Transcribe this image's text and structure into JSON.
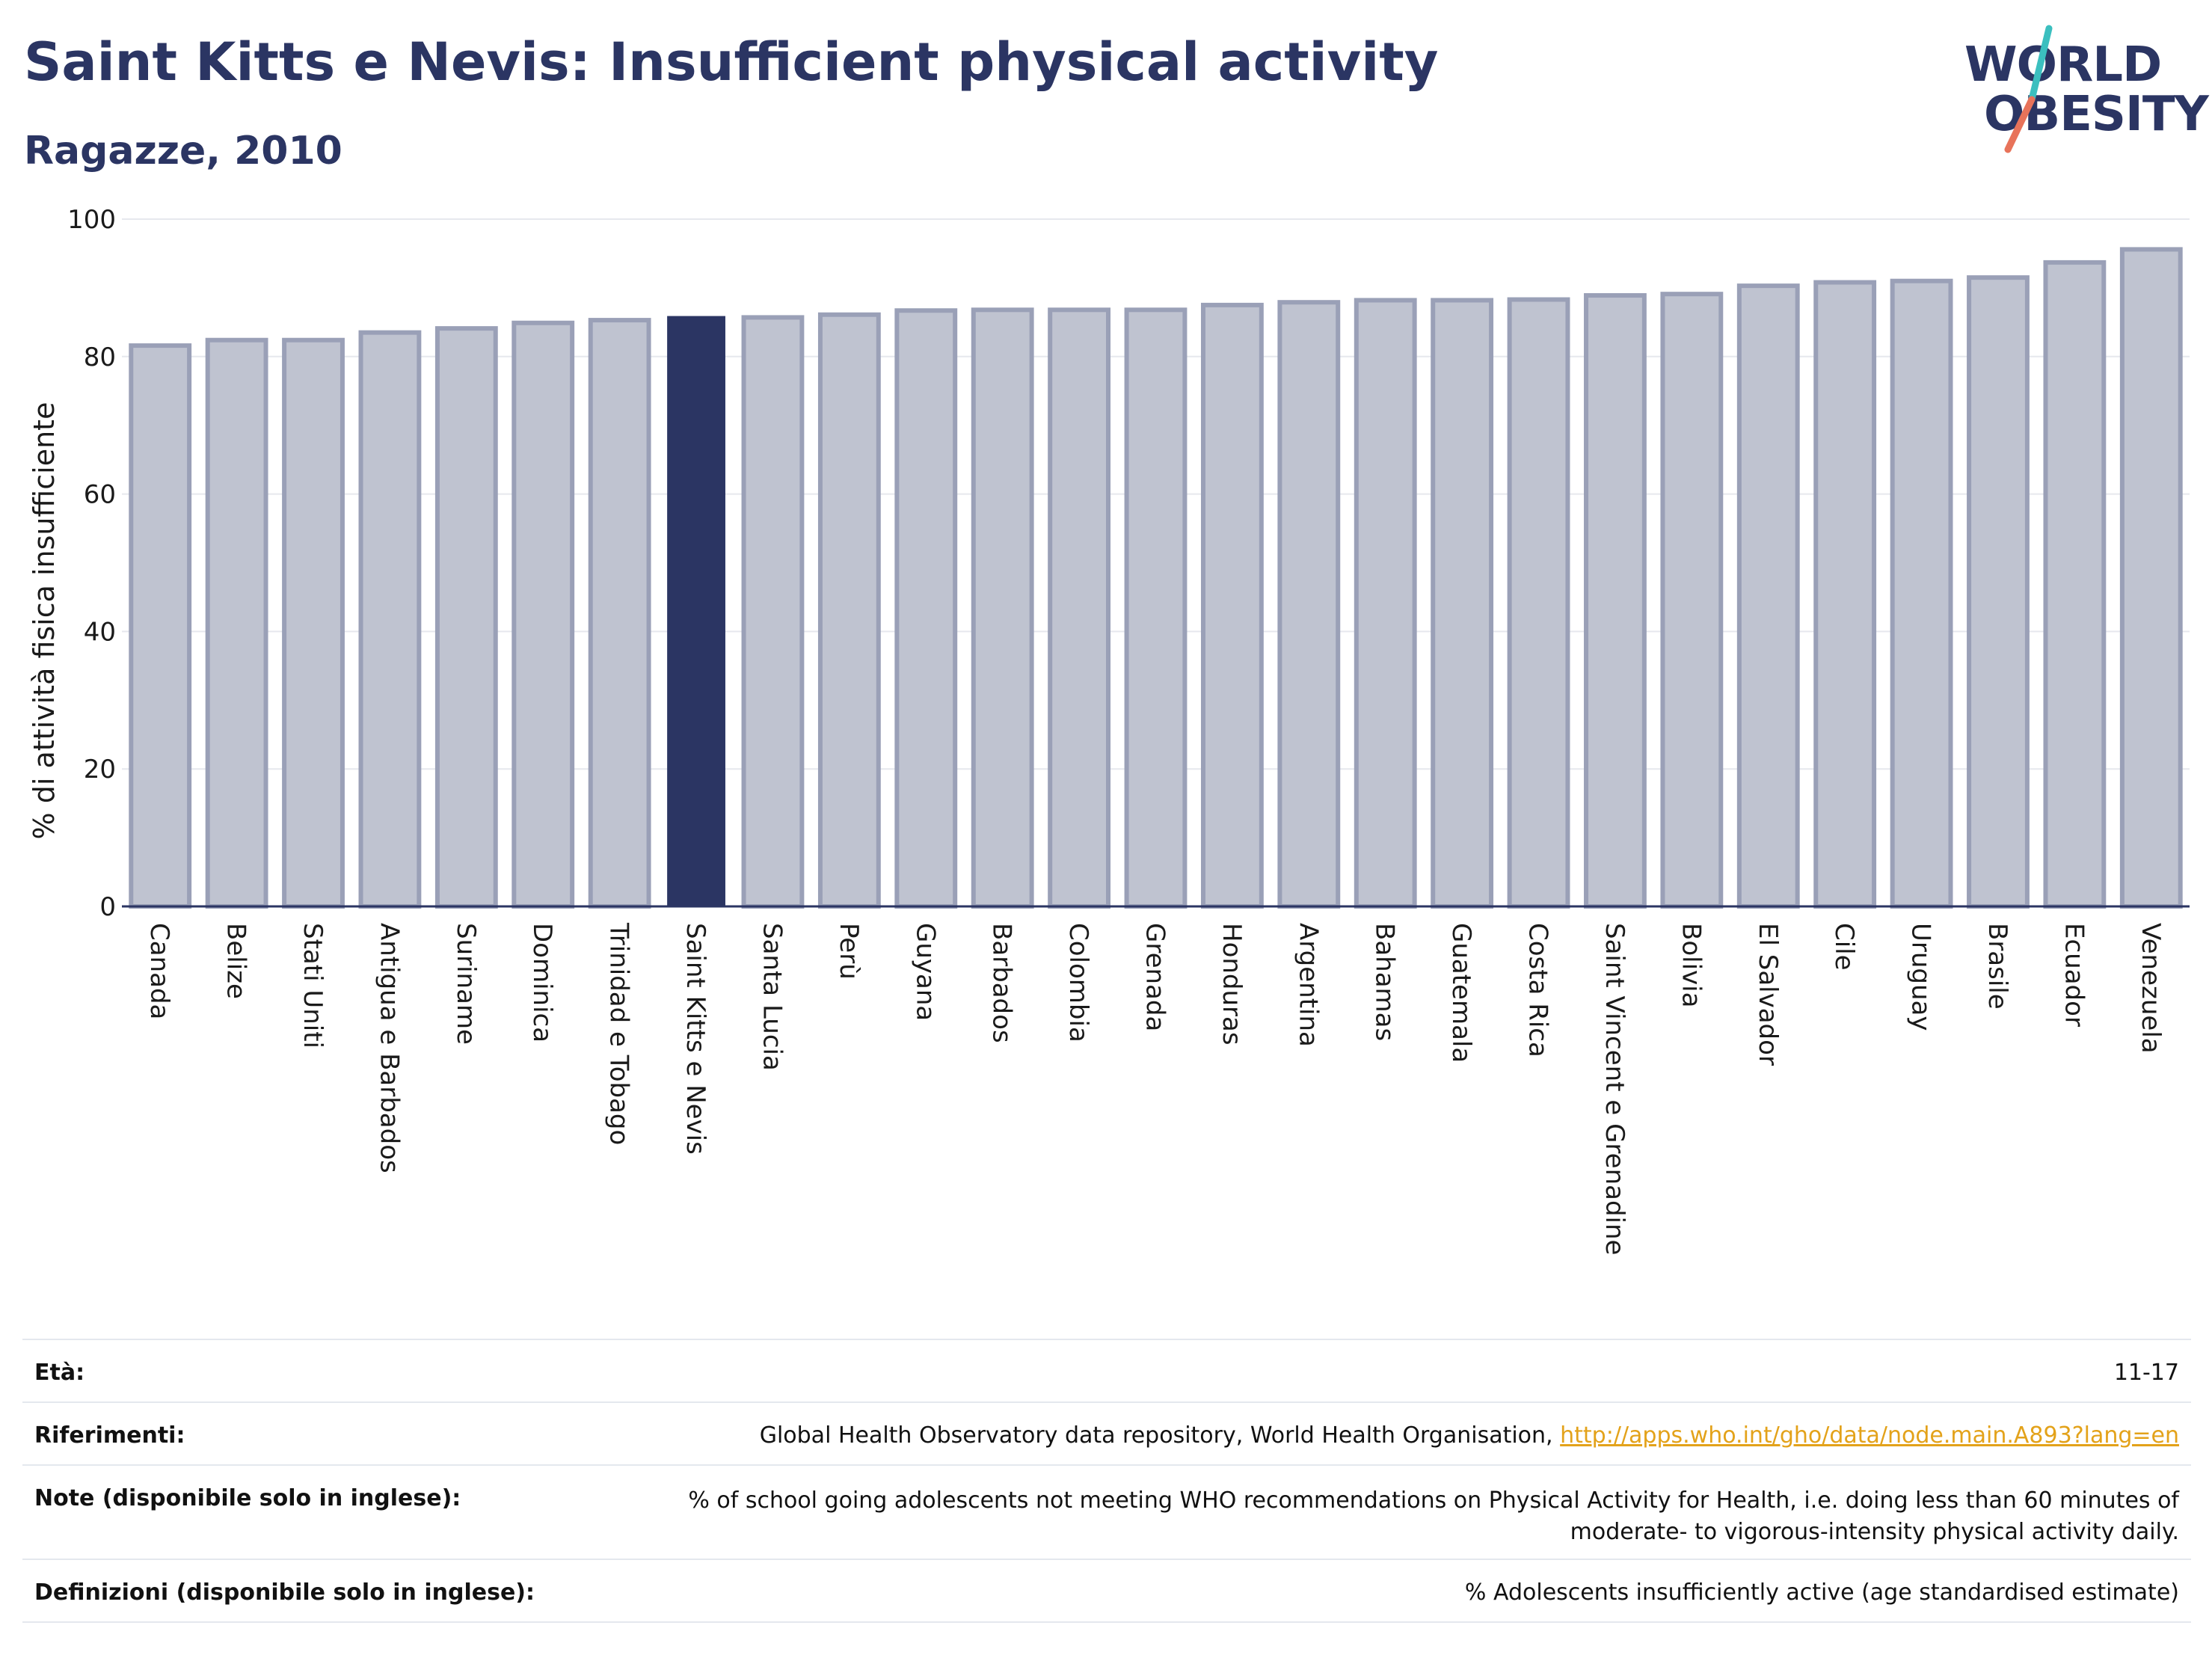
{
  "header": {
    "title": "Saint Kitts e Nevis: Insufficient physical activity",
    "subtitle": "Ragazze, 2010"
  },
  "logo": {
    "line1": "WORLD",
    "line2": "OBESITY",
    "colors": {
      "teal": "#3bbfbf",
      "coral": "#e8735a",
      "navy": "#2b3563"
    }
  },
  "chart_data": {
    "type": "bar",
    "ylabel": "% di attività fisica insufficiente",
    "ylim": [
      0,
      100
    ],
    "yticks": [
      0,
      20,
      40,
      60,
      80,
      100
    ],
    "grid": true,
    "highlight": "Saint Kitts e Nevis",
    "colors": {
      "bar": "#bfc3d0",
      "bar_edge": "#9aa0b7",
      "highlight": "#2b3563"
    },
    "categories": [
      "Canada",
      "Belize",
      "Stati Uniti",
      "Antigua e Barbados",
      "Suriname",
      "Dominica",
      "Trinidad e Tobago",
      "Saint Kitts e Nevis",
      "Santa Lucia",
      "Perù",
      "Guyana",
      "Barbados",
      "Colombia",
      "Grenada",
      "Honduras",
      "Argentina",
      "Bahamas",
      "Guatemala",
      "Costa Rica",
      "Saint Vincent e Grenadine",
      "Bolivia",
      "El Salvador",
      "Cile",
      "Uruguay",
      "Brasile",
      "Ecuador",
      "Venezuela"
    ],
    "values": [
      81.6,
      82.4,
      82.4,
      83.5,
      84.1,
      84.9,
      85.3,
      85.9,
      85.7,
      86.1,
      86.7,
      86.8,
      86.8,
      86.8,
      87.5,
      87.9,
      88.2,
      88.2,
      88.3,
      88.9,
      89.1,
      90.3,
      90.8,
      91.0,
      91.5,
      93.7,
      95.6
    ]
  },
  "table": [
    {
      "key": "Età:",
      "value": "11-17"
    },
    {
      "key": "Riferimenti:",
      "value": "Global Health Observatory data repository, World Health Organisation,",
      "link": "http://apps.who.int/gho/data/node.main.A893?lang=en"
    },
    {
      "key": "Note (disponibile solo in inglese):",
      "value_line1": "% of school going adolescents not meeting WHO recommendations on Physical Activity for Health, i.e. doing less than 60 minutes of",
      "value_line2": "moderate- to vigorous-intensity physical activity daily."
    },
    {
      "key": "Definizioni (disponibile solo in inglese):",
      "value": "% Adolescents insufficiently active (age standardised estimate)"
    }
  ]
}
